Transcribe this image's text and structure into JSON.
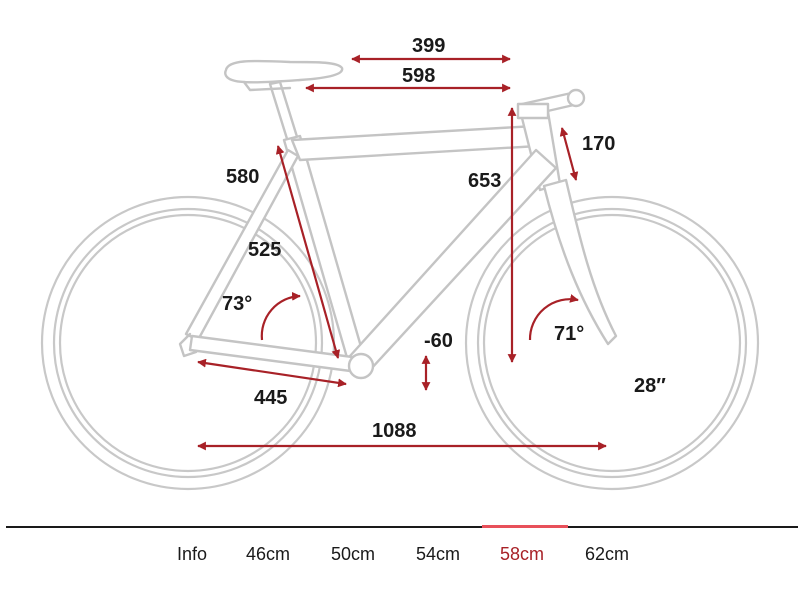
{
  "diagram": {
    "labels": {
      "reach": "399",
      "top_tube": "598",
      "seat_tube_ct": "580",
      "seat_tube_cc": "525",
      "seat_angle": "73°",
      "stack": "653",
      "head_tube": "170",
      "head_angle": "71°",
      "bb_drop": "-60",
      "chainstay": "445",
      "wheelbase": "1088",
      "wheel_size": "28″"
    },
    "colors": {
      "dimension": "#a82127",
      "frame": "#c4c4c4",
      "active_tab": "#a82127"
    }
  },
  "tabs": {
    "items": [
      {
        "label": "Info"
      },
      {
        "label": "46cm"
      },
      {
        "label": "50cm"
      },
      {
        "label": "54cm"
      },
      {
        "label": "58cm"
      },
      {
        "label": "62cm"
      }
    ],
    "active": "58cm"
  }
}
